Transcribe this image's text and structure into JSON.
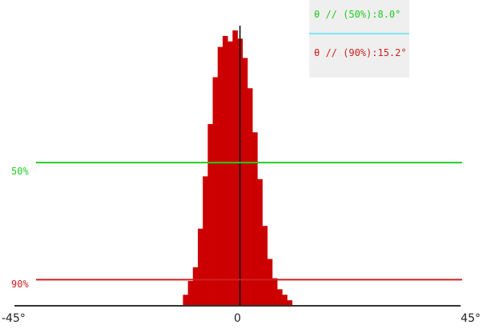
{
  "legend": {
    "line_50": "θ // (50%):8.0°",
    "line_90": "θ // (90%):15.2°",
    "bg": "#efefef",
    "divider": "#7fe5ef"
  },
  "chart_data": {
    "type": "bar",
    "x": [
      -10.5,
      -9.5,
      -8.5,
      -7.5,
      -6.5,
      -5.5,
      -4.5,
      -3.5,
      -2.5,
      -1.5,
      -0.5,
      0.5,
      1.5,
      2.5,
      3.5,
      4.5,
      5.5,
      6.5,
      7.5,
      8.5,
      9.5,
      10.5
    ],
    "values": [
      0.04,
      0.09,
      0.14,
      0.28,
      0.47,
      0.66,
      0.83,
      0.94,
      0.98,
      0.96,
      1.0,
      0.97,
      0.9,
      0.79,
      0.63,
      0.46,
      0.29,
      0.17,
      0.1,
      0.06,
      0.04,
      0.02
    ],
    "xlim": [
      -45,
      45
    ],
    "xticks": [
      {
        "value": -45,
        "label": "-45°"
      },
      {
        "value": 0,
        "label": "0"
      },
      {
        "value": 45,
        "label": "45°"
      }
    ],
    "hlines": [
      {
        "label": "50%",
        "level": 0.52,
        "color": "#22cc22"
      },
      {
        "label": "90%",
        "level": 0.095,
        "color": "#cc2222"
      }
    ],
    "peak_marker_x": 0.5,
    "bar_color": "#cc0000"
  }
}
